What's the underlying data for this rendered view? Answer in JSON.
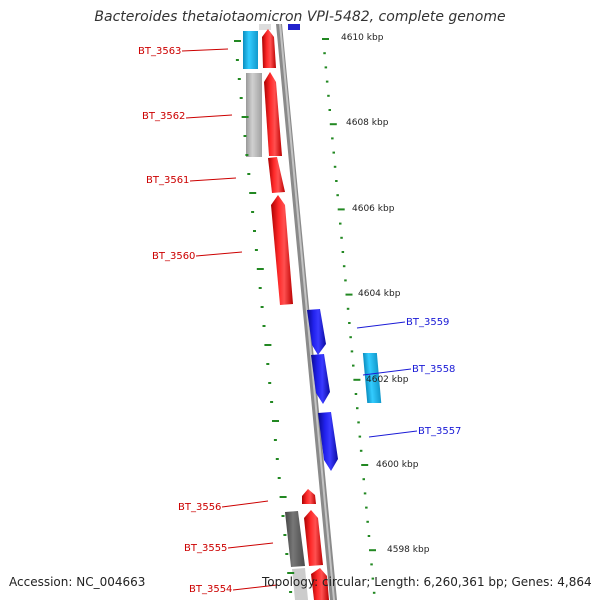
{
  "title": "Bacteroides thetaiotaomicron VPI-5482, complete genome",
  "footer": {
    "accession": "Accession: NC_004663",
    "summary": "Topology: circular; Length: 6,260,361 bp; Genes: 4,864"
  },
  "colors": {
    "forward_gene": "#ee1111",
    "forward_label": "#cc0000",
    "reverse_gene": "#1a1ad6",
    "reverse_label": "#1a1ad6",
    "rrna_like": "#22bbee",
    "pseudo_light": "#b8b8b8",
    "pseudo_dark": "#666666",
    "backbone": "#888888",
    "tick": "#228822"
  },
  "scale": {
    "unit": "kbp",
    "labels": [
      "4610 kbp",
      "4608 kbp",
      "4606 kbp",
      "4604 kbp",
      "4602 kbp",
      "4600 kbp",
      "4598 kbp"
    ]
  },
  "genes_forward": [
    {
      "label": "BT_3563"
    },
    {
      "label": "BT_3562"
    },
    {
      "label": "BT_3561"
    },
    {
      "label": "BT_3560"
    },
    {
      "label": "BT_3556"
    },
    {
      "label": "BT_3555"
    },
    {
      "label": "BT_3554"
    }
  ],
  "genes_reverse": [
    {
      "label": "BT_3559"
    },
    {
      "label": "BT_3558"
    },
    {
      "label": "BT_3557"
    }
  ]
}
